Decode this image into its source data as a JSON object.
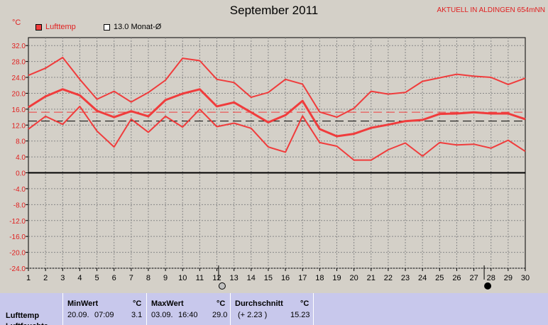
{
  "header": {
    "title": "September 2011",
    "location": "AKTUELL IN ALDINGEN 654mNN",
    "unit": "°C"
  },
  "legend": {
    "series_label": "Lufttemp",
    "monthly_label": "13.0 Monat-Ø"
  },
  "colors": {
    "series": "#f03c3c",
    "zero_line": "#000000",
    "monthly_avg": "#000000",
    "overall_avg": "#f03c3c",
    "grid": "#888888",
    "plot_bg": "#d4d0c8",
    "stats_bg": "#c8c8ec"
  },
  "chart_data": {
    "type": "line",
    "title": "September 2011",
    "ylabel": "°C",
    "xlim": [
      1,
      30
    ],
    "ylim": [
      -24,
      34
    ],
    "yticks": [
      "32.0",
      "28.0",
      "24.0",
      "20.0",
      "16.0",
      "12.0",
      "8.0",
      "4.0",
      "0.0",
      "-4.0",
      "-8.0",
      "-12.0",
      "-16.0",
      "-20.0",
      "-24.0"
    ],
    "x": [
      1,
      2,
      3,
      4,
      5,
      6,
      7,
      8,
      9,
      10,
      11,
      12,
      13,
      14,
      15,
      16,
      17,
      18,
      19,
      20,
      21,
      22,
      23,
      24,
      25,
      26,
      27,
      28,
      29,
      30
    ],
    "series": [
      {
        "name": "Max",
        "values": [
          24.5,
          26.3,
          29.0,
          23.5,
          18.5,
          20.5,
          17.8,
          20.2,
          23.3,
          28.8,
          28.2,
          23.5,
          22.7,
          19.0,
          20.2,
          23.5,
          22.3,
          15.3,
          14.0,
          16.2,
          20.5,
          19.8,
          20.2,
          23.0,
          23.9,
          24.8,
          24.3,
          24.0,
          22.2,
          23.8
        ]
      },
      {
        "name": "Lufttemp",
        "values": [
          16.5,
          19.2,
          21.0,
          19.5,
          15.6,
          14.0,
          15.5,
          14.2,
          18.3,
          19.9,
          21.0,
          16.7,
          17.7,
          15.2,
          12.7,
          14.5,
          18.1,
          11.0,
          9.2,
          9.8,
          11.3,
          12.1,
          13.0,
          13.3,
          14.8,
          14.9,
          15.2,
          14.9,
          14.9,
          13.5
        ]
      },
      {
        "name": "Min",
        "values": [
          11.0,
          14.2,
          12.2,
          16.7,
          10.5,
          6.5,
          13.5,
          10.2,
          14.2,
          11.5,
          16.0,
          11.6,
          12.5,
          11.2,
          6.5,
          5.2,
          14.3,
          7.6,
          6.7,
          3.2,
          3.2,
          5.8,
          7.5,
          4.2,
          7.6,
          7.0,
          7.2,
          6.2,
          8.2,
          5.4
        ]
      }
    ],
    "monthly_avg": 13.0,
    "overall_avg": 15.23,
    "moon_phases": [
      {
        "day": 12.1,
        "phase": "full"
      },
      {
        "day": 27.6,
        "phase": "new"
      }
    ],
    "grid": true
  },
  "stats": {
    "row_label": "Lufttemp",
    "min": {
      "header": "MinWert",
      "unit": "°C",
      "date": "20.09.",
      "time": "07:09",
      "value": "3.1"
    },
    "max": {
      "header": "MaxWert",
      "unit": "°C",
      "date": "03.09.",
      "time": "16:40",
      "value": "29.0"
    },
    "avg": {
      "header": "Durchschnitt",
      "unit": "°C",
      "delta": "(+ 2.23 )",
      "value": "15.23"
    }
  }
}
